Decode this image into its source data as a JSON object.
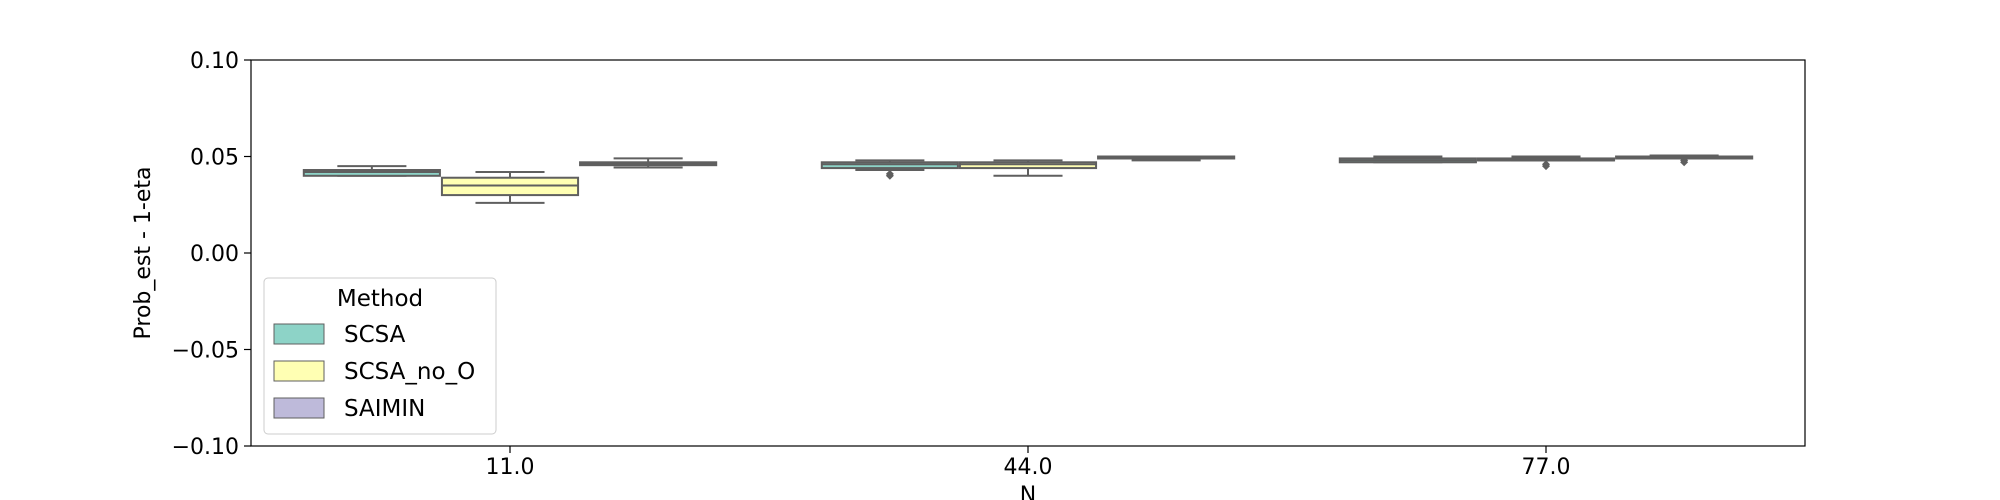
{
  "chart_data": {
    "type": "box",
    "xlabel": "N",
    "ylabel": "Prob_est - 1-eta",
    "ylim": [
      -0.1,
      0.1
    ],
    "yticks": [
      {
        "value": 0.1,
        "label": "0.10"
      },
      {
        "value": 0.05,
        "label": "0.05"
      },
      {
        "value": 0.0,
        "label": "0.00"
      },
      {
        "value": -0.05,
        "label": "−0.05"
      },
      {
        "value": -0.1,
        "label": "−0.10"
      }
    ],
    "categories": [
      "11.0",
      "44.0",
      "77.0"
    ],
    "grid": false,
    "legend": {
      "title": "Method",
      "placement": "lower-left"
    },
    "series": [
      {
        "name": "SCSA",
        "color": "#8dd3c7",
        "boxes": [
          {
            "whisker_low": 0.04,
            "q1": 0.04,
            "median": 0.042,
            "q3": 0.043,
            "whisker_high": 0.045,
            "outliers": []
          },
          {
            "whisker_low": 0.043,
            "q1": 0.044,
            "median": 0.046,
            "q3": 0.047,
            "whisker_high": 0.048,
            "outliers": [
              0.04,
              0.041
            ]
          },
          {
            "whisker_low": 0.047,
            "q1": 0.047,
            "median": 0.048,
            "q3": 0.049,
            "whisker_high": 0.05,
            "outliers": []
          }
        ]
      },
      {
        "name": "SCSA_no_O",
        "color": "#ffffb3",
        "boxes": [
          {
            "whisker_low": 0.026,
            "q1": 0.03,
            "median": 0.035,
            "q3": 0.039,
            "whisker_high": 0.042,
            "outliers": []
          },
          {
            "whisker_low": 0.04,
            "q1": 0.044,
            "median": 0.046,
            "q3": 0.047,
            "whisker_high": 0.048,
            "outliers": []
          },
          {
            "whisker_low": 0.048,
            "q1": 0.048,
            "median": 0.048,
            "q3": 0.049,
            "whisker_high": 0.05,
            "outliers": [
              0.045,
              0.046
            ]
          }
        ]
      },
      {
        "name": "SAIMIN",
        "color": "#bebada",
        "boxes": [
          {
            "whisker_low": 0.0443,
            "q1": 0.0455,
            "median": 0.0463,
            "q3": 0.047,
            "whisker_high": 0.049,
            "outliers": []
          },
          {
            "whisker_low": 0.048,
            "q1": 0.049,
            "median": 0.0495,
            "q3": 0.05,
            "whisker_high": 0.05,
            "outliers": []
          },
          {
            "whisker_low": 0.049,
            "q1": 0.0495,
            "median": 0.05,
            "q3": 0.05,
            "whisker_high": 0.0505,
            "outliers": [
              0.047,
              0.048
            ]
          }
        ]
      }
    ]
  }
}
